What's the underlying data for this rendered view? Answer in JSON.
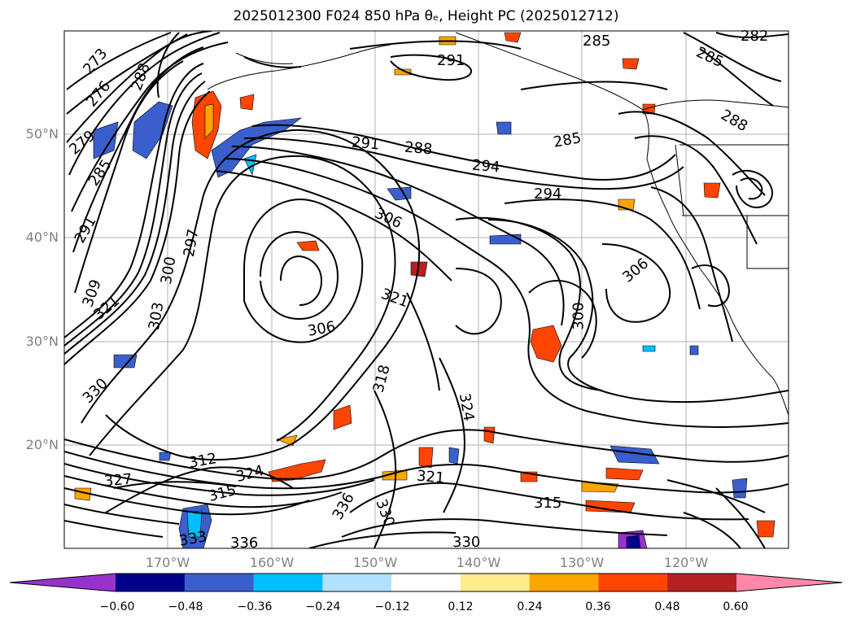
{
  "title": "2025012300 F024 850 hPa θₑ, Height PC (2025012712)",
  "lat_labels": [
    "50°N",
    "40°N",
    "30°N",
    "20°N"
  ],
  "lon_labels": [
    "170°W",
    "160°W",
    "150°W",
    "140°W",
    "130°W",
    "120°W"
  ],
  "contour_labels": [
    "273",
    "276",
    "279",
    "285",
    "291",
    "288",
    "297",
    "300",
    "303",
    "306",
    "309",
    "312",
    "315",
    "318",
    "321",
    "324",
    "327",
    "330",
    "333",
    "336",
    "291",
    "288",
    "294",
    "294",
    "285",
    "285",
    "282",
    "285",
    "288",
    "291",
    "306",
    "306",
    "300",
    "321",
    "324",
    "330",
    "336",
    "315",
    "321",
    "330"
  ],
  "colorbar": {
    "ticks": [
      "−0.60",
      "−0.48",
      "−0.36",
      "−0.24",
      "−0.12",
      "0.12",
      "0.24",
      "0.36",
      "0.48",
      "0.60"
    ],
    "colors": [
      "#9932CC",
      "#00008B",
      "#3A5FCD",
      "#00BFFF",
      "#B0E2FF",
      "#FFFFFF",
      "#FFEC8B",
      "#FFA500",
      "#FF4500",
      "#B22222",
      "#FF88AA"
    ]
  }
}
